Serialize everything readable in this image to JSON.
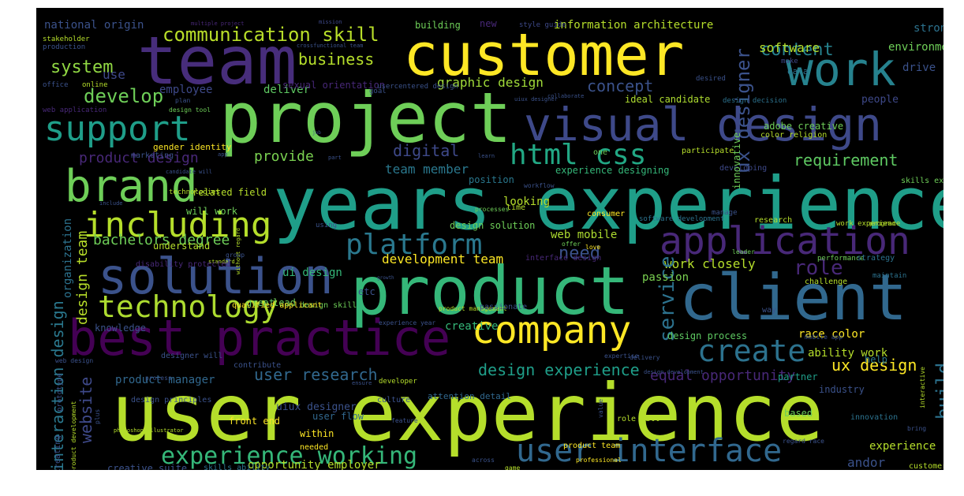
{
  "wordcloud": {
    "background": "#000000",
    "words": [
      {
        "text": "user experience",
        "color": "#b5de2b"
      },
      {
        "text": "years experience",
        "color": "#1f9e89"
      },
      {
        "text": "product",
        "color": "#35b779"
      },
      {
        "text": "project",
        "color": "#6ece58"
      },
      {
        "text": "customer",
        "color": "#fde725"
      },
      {
        "text": "client",
        "color": "#31688e"
      },
      {
        "text": "team",
        "color": "#472d7b"
      },
      {
        "text": "work",
        "color": "#26828e"
      },
      {
        "text": "visual design",
        "color": "#3e4989"
      },
      {
        "text": "solution",
        "color": "#3b528b"
      },
      {
        "text": "best practice",
        "color": "#440154"
      },
      {
        "text": "company",
        "color": "#fde725"
      },
      {
        "text": "brand",
        "color": "#6ece58"
      },
      {
        "text": "application",
        "color": "#482878"
      },
      {
        "text": "including",
        "color": "#b5de2b"
      },
      {
        "text": "technology",
        "color": "#addc30"
      },
      {
        "text": "platform",
        "color": "#2a788e"
      },
      {
        "text": "support",
        "color": "#1f9e89"
      },
      {
        "text": "html css",
        "color": "#22a884"
      },
      {
        "text": "user interface",
        "color": "#31688e"
      },
      {
        "text": "experience working",
        "color": "#35b779"
      },
      {
        "text": "create",
        "color": "#2c728e"
      },
      {
        "text": "communication skill",
        "color": "#b8de29"
      },
      {
        "text": "develop",
        "color": "#6ece58"
      },
      {
        "text": "system",
        "color": "#90d743"
      },
      {
        "text": "business",
        "color": "#b5de2b"
      },
      {
        "text": "concept",
        "color": "#3b528b"
      },
      {
        "text": "content",
        "color": "#26828e"
      },
      {
        "text": "graphic design",
        "color": "#a0da39"
      },
      {
        "text": "digital",
        "color": "#3e4989"
      },
      {
        "text": "provide",
        "color": "#7ad151"
      },
      {
        "text": "product design",
        "color": "#482878"
      },
      {
        "text": "requirement",
        "color": "#5ec962"
      },
      {
        "text": "team member",
        "color": "#2a788e"
      },
      {
        "text": "bachelors degree",
        "color": "#6ece58"
      },
      {
        "text": "need",
        "color": "#3b528b"
      },
      {
        "text": "role",
        "color": "#482878"
      },
      {
        "text": "work closely",
        "color": "#b5de2b"
      },
      {
        "text": "service",
        "color": "#2c728e"
      },
      {
        "text": "ux designer",
        "color": "#3b528b"
      },
      {
        "text": "design experience",
        "color": "#1f9e89"
      },
      {
        "text": "user research",
        "color": "#31688e"
      },
      {
        "text": "website",
        "color": "#3e4989"
      },
      {
        "text": "interaction design",
        "color": "#2a788e"
      },
      {
        "text": "design team",
        "color": "#b8de29"
      },
      {
        "text": "ux design",
        "color": "#fde725"
      },
      {
        "text": "build",
        "color": "#2c728e"
      },
      {
        "text": "equal opportunity",
        "color": "#482878"
      },
      {
        "text": "web mobile",
        "color": "#addc30"
      },
      {
        "text": "development team",
        "color": "#fde725"
      },
      {
        "text": "andor",
        "color": "#3b528b"
      },
      {
        "text": "software",
        "color": "#b5de2b"
      },
      {
        "text": "use",
        "color": "#3e4989"
      },
      {
        "text": "deliver",
        "color": "#5ec962"
      },
      {
        "text": "employee",
        "color": "#3e4989"
      },
      {
        "text": "national origin",
        "color": "#3b528b"
      },
      {
        "text": "information architecture",
        "color": "#b5de2b"
      },
      {
        "text": "adobe creative",
        "color": "#6ece58"
      },
      {
        "text": "experience designing",
        "color": "#35b779"
      },
      {
        "text": "related field",
        "color": "#b5de2b"
      },
      {
        "text": "ui design",
        "color": "#35b779"
      },
      {
        "text": "creative",
        "color": "#35b779"
      },
      {
        "text": "product manager",
        "color": "#31688e"
      },
      {
        "text": "ability work",
        "color": "#b5de2b"
      },
      {
        "text": "uiux designer",
        "color": "#3b528b"
      },
      {
        "text": "opportunity employer",
        "color": "#b5de2b"
      },
      {
        "text": "looking",
        "color": "#b5de2b"
      },
      {
        "text": "passion",
        "color": "#7ad151"
      },
      {
        "text": "experience",
        "color": "#b5de2b"
      },
      {
        "text": "strong",
        "color": "#2c728e"
      },
      {
        "text": "drive",
        "color": "#3b528b"
      },
      {
        "text": "environment",
        "color": "#6ece58"
      },
      {
        "text": "design solution",
        "color": "#6ece58"
      },
      {
        "text": "design process",
        "color": "#5ec962"
      },
      {
        "text": "race color",
        "color": "#fde725"
      },
      {
        "text": "veteran status",
        "color": "#2a788e"
      },
      {
        "text": "people",
        "color": "#3e4989"
      },
      {
        "text": "position",
        "color": "#2a788e"
      },
      {
        "text": "knowledge",
        "color": "#3b528b"
      },
      {
        "text": "lead",
        "color": "#6ece58"
      },
      {
        "text": "help",
        "color": "#2a788e"
      },
      {
        "text": "partner",
        "color": "#1f9e89"
      },
      {
        "text": "industry",
        "color": "#3b528b"
      },
      {
        "text": "organization",
        "color": "#2c728e"
      },
      {
        "text": "understand",
        "color": "#b5de2b"
      },
      {
        "text": "will work",
        "color": "#6ece58"
      },
      {
        "text": "ideal candidate",
        "color": "#addc30"
      },
      {
        "text": "gender identity",
        "color": "#fde725"
      },
      {
        "text": "front end",
        "color": "#fde725"
      },
      {
        "text": "within",
        "color": "#fde725"
      },
      {
        "text": "user flow",
        "color": "#31688e"
      },
      {
        "text": "based",
        "color": "#6ece58"
      },
      {
        "text": "creative suite",
        "color": "#3b528b"
      },
      {
        "text": "skills ability",
        "color": "#2c728e"
      },
      {
        "text": "designer will",
        "color": "#3b528b"
      },
      {
        "text": "attention detail",
        "color": "#31688e"
      },
      {
        "text": "etc",
        "color": "#3b528b"
      },
      {
        "text": "great",
        "color": "#5ec962"
      },
      {
        "text": "sexual orientation",
        "color": "#482878"
      },
      {
        "text": "usercentered design",
        "color": "#3b528b"
      },
      {
        "text": "make",
        "color": "#3e4989"
      },
      {
        "text": "data",
        "color": "#2c728e"
      },
      {
        "text": "desired",
        "color": "#3b528b"
      },
      {
        "text": "building",
        "color": "#6ece58"
      },
      {
        "text": "new",
        "color": "#482878"
      },
      {
        "text": "style guide",
        "color": "#3e4989"
      },
      {
        "text": "mission",
        "color": "#3e4989"
      },
      {
        "text": "multiple project",
        "color": "#482878"
      },
      {
        "text": "stakeholder",
        "color": "#b5de2b"
      },
      {
        "text": "production",
        "color": "#3b528b"
      },
      {
        "text": "crossfunctional team",
        "color": "#3b528b"
      },
      {
        "text": "office",
        "color": "#3b528b"
      },
      {
        "text": "online",
        "color": "#b5de2b"
      },
      {
        "text": "goal",
        "color": "#3b528b"
      },
      {
        "text": "web application",
        "color": "#482878"
      },
      {
        "text": "plan",
        "color": "#3b528b"
      },
      {
        "text": "design tool",
        "color": "#6ece58"
      },
      {
        "text": "uiux designer",
        "color": "#3b528b"
      },
      {
        "text": "collaborate",
        "color": "#3b528b"
      },
      {
        "text": "design decision",
        "color": "#2c728e"
      },
      {
        "text": "participate",
        "color": "#b5de2b"
      },
      {
        "text": "developing",
        "color": "#3e4989"
      },
      {
        "text": "one",
        "color": "#6ece58"
      },
      {
        "text": "color religion",
        "color": "#b5de2b"
      },
      {
        "text": "skills experience",
        "color": "#6ece58"
      },
      {
        "text": "world",
        "color": "#fde725"
      },
      {
        "text": "innovative",
        "color": "#6ece58"
      },
      {
        "text": "workflow",
        "color": "#3b528b"
      },
      {
        "text": "time",
        "color": "#b5de2b"
      },
      {
        "text": "processes",
        "color": "#6ece58"
      },
      {
        "text": "learn",
        "color": "#3b528b"
      },
      {
        "text": "part",
        "color": "#3b528b"
      },
      {
        "text": "marketing",
        "color": "#3b528b"
      },
      {
        "text": "job",
        "color": "#3b528b"
      },
      {
        "text": "app",
        "color": "#3b528b"
      },
      {
        "text": "candidate will",
        "color": "#3b528b"
      },
      {
        "text": "technologies",
        "color": "#b5de2b"
      },
      {
        "text": "include",
        "color": "#3b528b"
      },
      {
        "text": "using",
        "color": "#3b528b"
      },
      {
        "text": "manage",
        "color": "#3b528b"
      },
      {
        "text": "consumer",
        "color": "#fde725"
      },
      {
        "text": "software development",
        "color": "#2c728e"
      },
      {
        "text": "research",
        "color": "#b5de2b"
      },
      {
        "text": "work experience",
        "color": "#b5de2b"
      },
      {
        "text": "program",
        "color": "#b5de2b"
      },
      {
        "text": "offer",
        "color": "#6ece58"
      },
      {
        "text": "love",
        "color": "#fde725"
      },
      {
        "text": "interface design",
        "color": "#482878"
      },
      {
        "text": "leader",
        "color": "#6ece58"
      },
      {
        "text": "performance",
        "color": "#6ece58"
      },
      {
        "text": "strategy",
        "color": "#2c728e"
      },
      {
        "text": "challenge",
        "color": "#b5de2b"
      },
      {
        "text": "maintain",
        "color": "#2c728e"
      },
      {
        "text": "way",
        "color": "#3b528b"
      },
      {
        "text": "growth",
        "color": "#3b528b"
      },
      {
        "text": "without regard",
        "color": "#b5de2b"
      },
      {
        "text": "design skill",
        "color": "#6ece58"
      },
      {
        "text": "qualified applicant",
        "color": "#fde725"
      },
      {
        "text": "experience year",
        "color": "#3b528b"
      },
      {
        "text": "product management",
        "color": "#b5de2b"
      },
      {
        "text": "passionate",
        "color": "#3b528b"
      },
      {
        "text": "group",
        "color": "#3b528b"
      },
      {
        "text": "standard",
        "color": "#b5de2b"
      },
      {
        "text": "disability protected",
        "color": "#482878"
      },
      {
        "text": "mobile app",
        "color": "#3b528b"
      },
      {
        "text": "delivery",
        "color": "#3b528b"
      },
      {
        "text": "design development",
        "color": "#3b528b"
      },
      {
        "text": "expertise",
        "color": "#3b528b"
      },
      {
        "text": "process",
        "color": "#3b528b"
      },
      {
        "text": "contribute",
        "color": "#3b528b"
      },
      {
        "text": "developer",
        "color": "#b5de2b"
      },
      {
        "text": "culture",
        "color": "#3b528b"
      },
      {
        "text": "ensure",
        "color": "#3b528b"
      },
      {
        "text": "design principles",
        "color": "#3b528b"
      },
      {
        "text": "plus",
        "color": "#3b528b"
      },
      {
        "text": "photoshop illustrator",
        "color": "#b5de2b"
      },
      {
        "text": "needed",
        "color": "#fde725"
      },
      {
        "text": "feature",
        "color": "#3b528b"
      },
      {
        "text": "value",
        "color": "#3b528b"
      },
      {
        "text": "role will",
        "color": "#b5de2b"
      },
      {
        "text": "product team",
        "color": "#fde725"
      },
      {
        "text": "regard race",
        "color": "#3b528b"
      },
      {
        "text": "professional",
        "color": "#fde725"
      },
      {
        "text": "innovation",
        "color": "#2c728e"
      },
      {
        "text": "customer experience",
        "color": "#b5de2b"
      },
      {
        "text": "expert",
        "color": "#3b528b"
      },
      {
        "text": "bring",
        "color": "#3b528b"
      },
      {
        "text": "interactive",
        "color": "#b5de2b"
      },
      {
        "text": "across",
        "color": "#3b528b"
      },
      {
        "text": "game",
        "color": "#b5de2b"
      },
      {
        "text": "web design",
        "color": "#3b528b"
      },
      {
        "text": "creating",
        "color": "#3b528b"
      },
      {
        "text": "product development",
        "color": "#b5de2b"
      },
      {
        "text": "prototype",
        "color": "#3b528b"
      }
    ]
  }
}
